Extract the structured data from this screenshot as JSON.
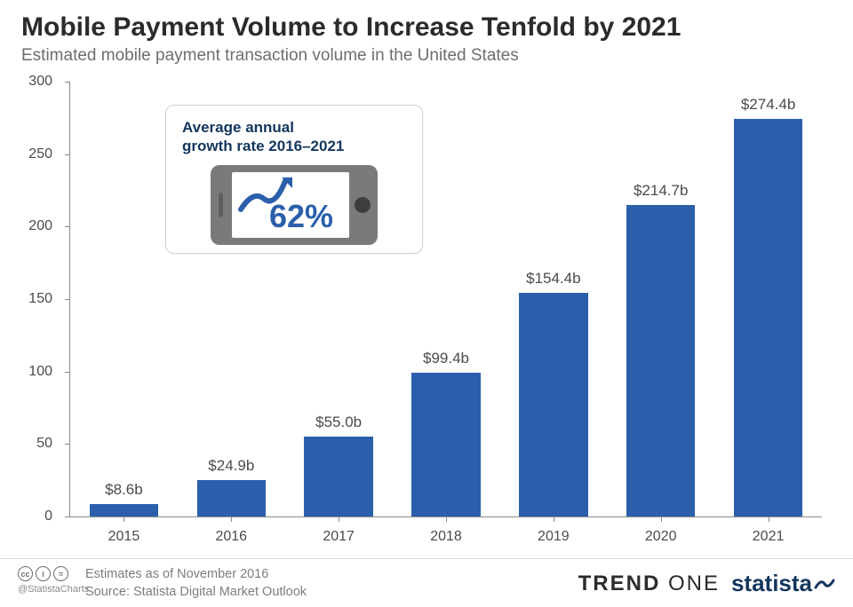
{
  "title": "Mobile Payment Volume to Increase Tenfold by 2021",
  "subtitle": "Estimated mobile payment transaction volume in the United States",
  "chart": {
    "type": "bar",
    "categories": [
      "2015",
      "2016",
      "2017",
      "2018",
      "2019",
      "2020",
      "2021"
    ],
    "values": [
      8.6,
      24.9,
      55.0,
      99.4,
      154.4,
      214.7,
      274.4
    ],
    "value_labels": [
      "$8.6b",
      "$24.9b",
      "$55.0b",
      "$99.4b",
      "$154.4b",
      "$214.7b",
      "$274.4b"
    ],
    "bar_color": "#2b5fab",
    "ylim": [
      0,
      300
    ],
    "ytick_step": 50,
    "yticks": [
      0,
      50,
      100,
      150,
      200,
      250,
      300
    ],
    "axis_color": "#8a8a8a",
    "label_color": "#4a4a4a",
    "bar_label_fontsize": 17,
    "tick_fontsize": 16,
    "bar_width_ratio": 0.64,
    "background_color": "#ffffff"
  },
  "callout": {
    "title_line1": "Average annual",
    "title_line2": "growth rate 2016–2021",
    "percent": "62%",
    "title_color": "#13365e",
    "percent_color": "#2b5fab",
    "arrow_color": "#2b5fab",
    "phone_body_color": "#7a7a7a",
    "box_border_color": "#d0d0d0"
  },
  "footer": {
    "handle": "@StatistaCharts",
    "note_line1": "Estimates as of November 2016",
    "note_line2": "Source: Statista Digital Market Outlook",
    "brand1_a": "TREND",
    "brand1_b": "ONE",
    "brand2": "statista",
    "cc_labels": [
      "cc",
      "i",
      "="
    ],
    "text_color": "#7d7d7d",
    "statista_color": "#13365e"
  }
}
